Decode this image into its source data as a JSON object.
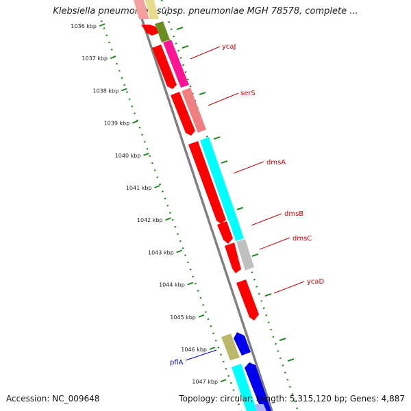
{
  "title": "Klebsiella pneumoniae subsp. pneumoniae MGH 78578, complete ...",
  "footer": {
    "accession": "Accession: NC_009648",
    "summary": "Topology: circular; Length: 5,315,120 bp; Genes: 4,887"
  },
  "ticks": [
    "1036 kbp",
    "1037 kbp",
    "1038 kbp",
    "1039 kbp",
    "1040 kbp",
    "1041 kbp",
    "1042 kbp",
    "1043 kbp",
    "1044 kbp",
    "1045 kbp",
    "1046 kbp",
    "1047 kbp"
  ],
  "genes": [
    {
      "name": "ycaJ",
      "color": "#cc0000"
    },
    {
      "name": "serS",
      "color": "#cc0000"
    },
    {
      "name": "dmsA",
      "color": "#cc0000"
    },
    {
      "name": "dmsB",
      "color": "#cc0000"
    },
    {
      "name": "dmsC",
      "color": "#cc0000"
    },
    {
      "name": "ycaD",
      "color": "#cc0000"
    },
    {
      "name": "pflA",
      "color": "#0000cc"
    }
  ],
  "colors": {
    "backbone": "#808080",
    "cds_forward": "#ff0000",
    "cds_reverse": "#0000ee",
    "trna": "#f08080",
    "rrna": "#ff1493",
    "feature_cyan": "#00ffff",
    "feature_olive": "#6b8e23",
    "feature_khaki": "#bdb76b",
    "feature_gray": "#bdbdbd",
    "tick_green": "#228b22"
  }
}
